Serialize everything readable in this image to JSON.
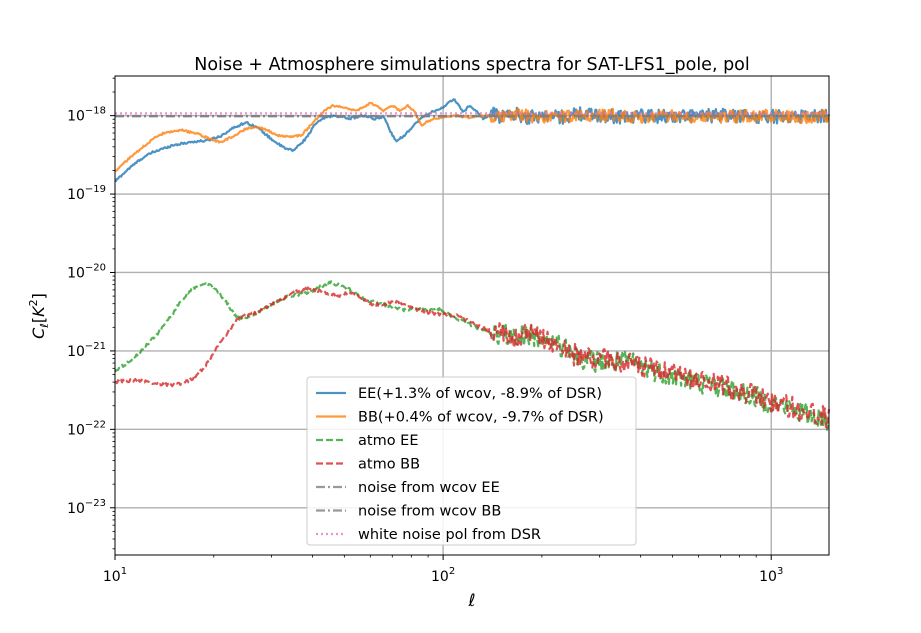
{
  "chart_data": {
    "type": "line",
    "title": "Noise + Atmosphere simulations spectra for SAT-LFS1_pole, pol",
    "xlabel": "ℓ",
    "ylabel": "C_ℓ[K^2]",
    "xscale": "log",
    "yscale": "log",
    "xlim": [
      10,
      1500
    ],
    "ylim": [
      2.5e-24,
      3.2e-18
    ],
    "grid": true,
    "legend_position": "lower center",
    "xticks": [
      {
        "value": 10,
        "mantissa": "10",
        "exp": "1"
      },
      {
        "value": 100,
        "mantissa": "10",
        "exp": "2"
      },
      {
        "value": 1000,
        "mantissa": "10",
        "exp": "3"
      }
    ],
    "yticks": [
      {
        "value": 1e-23,
        "mantissa": "10",
        "exp": "−23"
      },
      {
        "value": 1e-22,
        "mantissa": "10",
        "exp": "−22"
      },
      {
        "value": 1e-21,
        "mantissa": "10",
        "exp": "−21"
      },
      {
        "value": 1e-20,
        "mantissa": "10",
        "exp": "−20"
      },
      {
        "value": 1e-19,
        "mantissa": "10",
        "exp": "−19"
      },
      {
        "value": 1e-18,
        "mantissa": "10",
        "exp": "−18"
      }
    ],
    "series": [
      {
        "name": "EE(+1.3% of wcov, -8.9% of DSR)",
        "color": "#1f77b4",
        "dash": "solid",
        "noise": 0.09,
        "points": [
          [
            10,
            1.45e-19
          ],
          [
            11,
            2.1e-19
          ],
          [
            12,
            2.8e-19
          ],
          [
            13,
            3.4e-19
          ],
          [
            15,
            4.2e-19
          ],
          [
            17,
            4.6e-19
          ],
          [
            19,
            4.8e-19
          ],
          [
            21,
            5.5e-19
          ],
          [
            23,
            7e-19
          ],
          [
            25,
            8.2e-19
          ],
          [
            27,
            7.2e-19
          ],
          [
            30,
            5e-19
          ],
          [
            33,
            3.8e-19
          ],
          [
            35,
            3.6e-19
          ],
          [
            38,
            5e-19
          ],
          [
            41,
            8e-19
          ],
          [
            44,
            9.6e-19
          ],
          [
            47,
            1e-18
          ],
          [
            52,
            9.2e-19
          ],
          [
            57,
            1e-18
          ],
          [
            62,
            9e-19
          ],
          [
            66,
            9.8e-19
          ],
          [
            69,
            6.3e-19
          ],
          [
            72,
            4.8e-19
          ],
          [
            76,
            5.5e-19
          ],
          [
            80,
            7e-19
          ],
          [
            85,
            9e-19
          ],
          [
            90,
            1.05e-18
          ],
          [
            96,
            1.2e-18
          ],
          [
            100,
            1.25e-18
          ],
          [
            104,
            1.45e-18
          ],
          [
            108,
            1.65e-18
          ],
          [
            112,
            1.3e-18
          ],
          [
            116,
            1.1e-18
          ],
          [
            120,
            1.35e-18
          ],
          [
            126,
            1.15e-18
          ],
          [
            133,
            9e-19
          ],
          [
            140,
            1.05e-18
          ],
          [
            150,
            9.8e-19
          ],
          [
            165,
            1.05e-18
          ],
          [
            180,
            9.5e-19
          ],
          [
            200,
            1e-18
          ],
          [
            230,
            9.6e-19
          ],
          [
            260,
            1.05e-18
          ],
          [
            300,
            1e-18
          ],
          [
            350,
            9.7e-19
          ],
          [
            400,
            1e-18
          ],
          [
            500,
            9.8e-19
          ],
          [
            700,
            1e-18
          ],
          [
            1000,
            9.7e-19
          ],
          [
            1300,
            1e-18
          ],
          [
            1500,
            9.9e-19
          ]
        ]
      },
      {
        "name": "BB(+0.4% of wcov, -9.7% of DSR)",
        "color": "#ff7f0e",
        "dash": "solid",
        "noise": 0.08,
        "points": [
          [
            10,
            1.95e-19
          ],
          [
            11,
            2.8e-19
          ],
          [
            12,
            3.8e-19
          ],
          [
            13,
            5e-19
          ],
          [
            14,
            5.9e-19
          ],
          [
            16,
            6.5e-19
          ],
          [
            18,
            5.8e-19
          ],
          [
            20,
            4.8e-19
          ],
          [
            21,
            4.6e-19
          ],
          [
            23,
            5.5e-19
          ],
          [
            25,
            6.8e-19
          ],
          [
            27,
            7.2e-19
          ],
          [
            29,
            6.6e-19
          ],
          [
            31,
            5.6e-19
          ],
          [
            34,
            5.4e-19
          ],
          [
            37,
            5.6e-19
          ],
          [
            40,
            8e-19
          ],
          [
            43,
            1.1e-18
          ],
          [
            46,
            1.35e-18
          ],
          [
            50,
            1.28e-18
          ],
          [
            54,
            1.15e-18
          ],
          [
            57,
            1.25e-18
          ],
          [
            60,
            1.45e-18
          ],
          [
            63,
            1.3e-18
          ],
          [
            66,
            1.15e-18
          ],
          [
            70,
            1.35e-18
          ],
          [
            74,
            1.15e-18
          ],
          [
            78,
            1.35e-18
          ],
          [
            82,
            1.1e-18
          ],
          [
            86,
            7.5e-19
          ],
          [
            90,
            8.5e-19
          ],
          [
            95,
            9.2e-19
          ],
          [
            100,
            9.6e-19
          ],
          [
            110,
            1e-18
          ],
          [
            120,
            9.5e-19
          ],
          [
            135,
            1e-18
          ],
          [
            150,
            9.6e-19
          ],
          [
            170,
            1.02e-18
          ],
          [
            200,
            9.5e-19
          ],
          [
            240,
            1e-18
          ],
          [
            280,
            9.7e-19
          ],
          [
            330,
            1.02e-18
          ],
          [
            400,
            9.6e-19
          ],
          [
            500,
            1e-18
          ],
          [
            700,
            9.7e-19
          ],
          [
            1000,
            1e-18
          ],
          [
            1300,
            9.6e-19
          ],
          [
            1500,
            9.8e-19
          ]
        ]
      },
      {
        "name": "atmo EE",
        "color": "#2ca02c",
        "dash": "dashed",
        "noise": 0.14,
        "points": [
          [
            10,
            5.5e-22
          ],
          [
            11,
            7.2e-22
          ],
          [
            12,
            1e-21
          ],
          [
            13,
            1.4e-21
          ],
          [
            14,
            2e-21
          ],
          [
            15,
            3e-21
          ],
          [
            16,
            4.5e-21
          ],
          [
            17,
            6e-21
          ],
          [
            18,
            7e-21
          ],
          [
            19,
            7.2e-21
          ],
          [
            20,
            6.5e-21
          ],
          [
            21,
            5.2e-21
          ],
          [
            22,
            4e-21
          ],
          [
            23,
            3e-21
          ],
          [
            24,
            2.6e-21
          ],
          [
            26,
            2.8e-21
          ],
          [
            28,
            3.3e-21
          ],
          [
            30,
            4e-21
          ],
          [
            33,
            4.8e-21
          ],
          [
            36,
            5.2e-21
          ],
          [
            39,
            5.5e-21
          ],
          [
            42,
            6.5e-21
          ],
          [
            45,
            7.5e-21
          ],
          [
            48,
            7e-21
          ],
          [
            52,
            6e-21
          ],
          [
            56,
            4.8e-21
          ],
          [
            60,
            4.3e-21
          ],
          [
            65,
            4e-21
          ],
          [
            70,
            3.6e-21
          ],
          [
            76,
            3.3e-21
          ],
          [
            82,
            3.5e-21
          ],
          [
            88,
            3.3e-21
          ],
          [
            95,
            3.5e-21
          ],
          [
            100,
            3.2e-21
          ],
          [
            110,
            2.6e-21
          ],
          [
            120,
            2.2e-21
          ],
          [
            130,
            1.9e-21
          ],
          [
            145,
            1.6e-21
          ],
          [
            160,
            1.55e-21
          ],
          [
            180,
            1.6e-21
          ],
          [
            200,
            1.45e-21
          ],
          [
            220,
            1.2e-21
          ],
          [
            250,
            9e-22
          ],
          [
            280,
            7.5e-22
          ],
          [
            320,
            7e-22
          ],
          [
            360,
            7.5e-22
          ],
          [
            400,
            6.5e-22
          ],
          [
            450,
            5.5e-22
          ],
          [
            500,
            4.8e-22
          ],
          [
            600,
            4e-22
          ],
          [
            700,
            3.5e-22
          ],
          [
            800,
            3e-22
          ],
          [
            1000,
            2.2e-22
          ],
          [
            1200,
            1.7e-22
          ],
          [
            1500,
            1.3e-22
          ]
        ]
      },
      {
        "name": "atmo BB",
        "color": "#d62728",
        "dash": "dashed",
        "noise": 0.14,
        "points": [
          [
            10,
            4e-22
          ],
          [
            11,
            4.2e-22
          ],
          [
            12,
            4.2e-22
          ],
          [
            13,
            3.9e-22
          ],
          [
            14,
            3.7e-22
          ],
          [
            15,
            3.7e-22
          ],
          [
            16,
            3.8e-22
          ],
          [
            17,
            4.3e-22
          ],
          [
            18,
            5.2e-22
          ],
          [
            19,
            6.8e-22
          ],
          [
            20,
            9.5e-22
          ],
          [
            21,
            1.3e-21
          ],
          [
            22,
            1.7e-21
          ],
          [
            23,
            2.2e-21
          ],
          [
            24,
            2.7e-21
          ],
          [
            26,
            2.9e-21
          ],
          [
            28,
            3.3e-21
          ],
          [
            30,
            3.9e-21
          ],
          [
            33,
            4.8e-21
          ],
          [
            36,
            5.8e-21
          ],
          [
            39,
            6.2e-21
          ],
          [
            42,
            5.8e-21
          ],
          [
            45,
            5.3e-21
          ],
          [
            48,
            5e-21
          ],
          [
            52,
            5.6e-21
          ],
          [
            56,
            4.9e-21
          ],
          [
            60,
            4e-21
          ],
          [
            65,
            3.8e-21
          ],
          [
            70,
            4.3e-21
          ],
          [
            76,
            3.9e-21
          ],
          [
            82,
            3.4e-21
          ],
          [
            88,
            3.2e-21
          ],
          [
            95,
            2.9e-21
          ],
          [
            100,
            3e-21
          ],
          [
            110,
            2.8e-21
          ],
          [
            120,
            2.4e-21
          ],
          [
            130,
            2e-21
          ],
          [
            145,
            1.7e-21
          ],
          [
            160,
            1.5e-21
          ],
          [
            180,
            1.6e-21
          ],
          [
            200,
            1.5e-21
          ],
          [
            220,
            1.2e-21
          ],
          [
            250,
            9e-22
          ],
          [
            280,
            8e-22
          ],
          [
            320,
            7.8e-22
          ],
          [
            360,
            7e-22
          ],
          [
            400,
            6.3e-22
          ],
          [
            450,
            5.6e-22
          ],
          [
            500,
            4.9e-22
          ],
          [
            600,
            4.2e-22
          ],
          [
            700,
            3.6e-22
          ],
          [
            800,
            3.1e-22
          ],
          [
            1000,
            2.3e-22
          ],
          [
            1200,
            1.8e-22
          ],
          [
            1500,
            1.4e-22
          ]
        ]
      },
      {
        "name": "noise from wcov EE",
        "color": "#7f7f7f",
        "dash": "dashdot",
        "noise": 0,
        "points": [
          [
            10,
            9.8e-19
          ],
          [
            1500,
            9.8e-19
          ]
        ]
      },
      {
        "name": "noise from wcov BB",
        "color": "#7f7f7f",
        "dash": "dashdot",
        "noise": 0,
        "points": [
          [
            10,
            9.9e-19
          ],
          [
            1500,
            9.9e-19
          ]
        ]
      },
      {
        "name": "white noise pol from DSR",
        "color": "#e377c2",
        "dash": "dotted",
        "noise": 0,
        "points": [
          [
            10,
            1.07e-18
          ],
          [
            1500,
            1.07e-18
          ]
        ]
      }
    ]
  }
}
